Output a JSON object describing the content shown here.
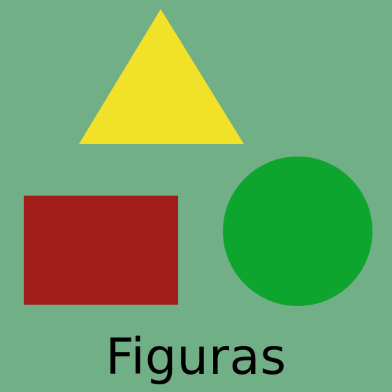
{
  "title": "Figuras",
  "colors": {
    "background": "#71AF86",
    "triangle": "#F1E128",
    "rectangle": "#A21E19",
    "circle": "#0DA52E",
    "text": "#000000"
  },
  "shapes": [
    {
      "kind": "triangle",
      "color_key": "triangle"
    },
    {
      "kind": "rectangle",
      "color_key": "rectangle"
    },
    {
      "kind": "circle",
      "color_key": "circle"
    }
  ]
}
